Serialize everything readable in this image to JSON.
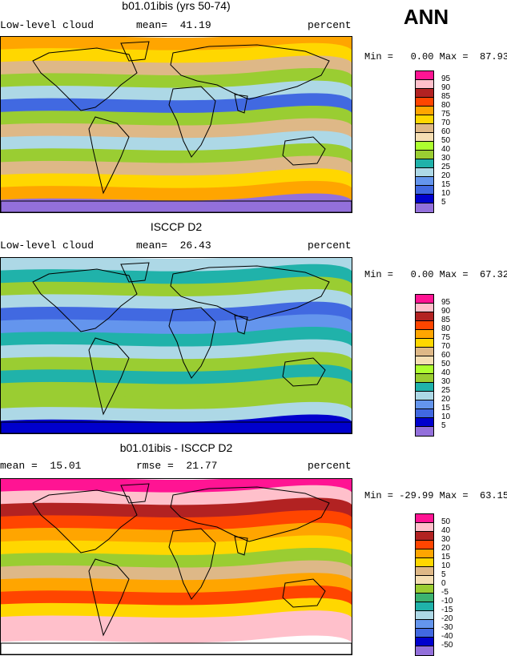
{
  "season": "ANN",
  "panels": [
    {
      "title": "b01.01ibis (yrs 50-74)",
      "left_label": "Low-level cloud",
      "stat1": "mean=  41.19",
      "stat2": "",
      "units": "percent",
      "minmax": "Min =   0.00 Max =  87.93",
      "scale": "abs"
    },
    {
      "title": "ISCCP D2",
      "left_label": "Low-level cloud",
      "stat1": "mean=  26.43",
      "stat2": "",
      "units": "percent",
      "minmax": "Min =   0.00 Max =  67.32",
      "scale": "abs"
    },
    {
      "title": "b01.01ibis - ISCCP D2",
      "left_label": "mean =  15.01",
      "stat1": "rmse =  21.77",
      "stat2": "",
      "units": "percent",
      "minmax": "Min = -29.99 Max =  63.15",
      "scale": "diff"
    }
  ],
  "colorbars": {
    "abs": {
      "labels": [
        "95",
        "90",
        "85",
        "80",
        "75",
        "70",
        "60",
        "50",
        "40",
        "30",
        "25",
        "20",
        "15",
        "10",
        "5"
      ],
      "colors": [
        "#ff1493",
        "#ffc0cb",
        "#b22222",
        "#ff4500",
        "#ffa500",
        "#ffd700",
        "#deb887",
        "#f5deb3",
        "#adff2f",
        "#9acd32",
        "#20b2aa",
        "#add8e6",
        "#6495ed",
        "#4169e1",
        "#0000cd",
        "#9370db"
      ]
    },
    "diff": {
      "labels": [
        "50",
        "40",
        "30",
        "20",
        "15",
        "10",
        "5",
        "0",
        "-5",
        "-10",
        "-15",
        "-20",
        "-30",
        "-40",
        "-50"
      ],
      "colors": [
        "#ff1493",
        "#ffc0cb",
        "#b22222",
        "#ff4500",
        "#ffa500",
        "#ffd700",
        "#deb887",
        "#f5deb3",
        "#9acd32",
        "#3cb371",
        "#20b2aa",
        "#add8e6",
        "#6495ed",
        "#4169e1",
        "#0000cd",
        "#9370db"
      ]
    }
  }
}
